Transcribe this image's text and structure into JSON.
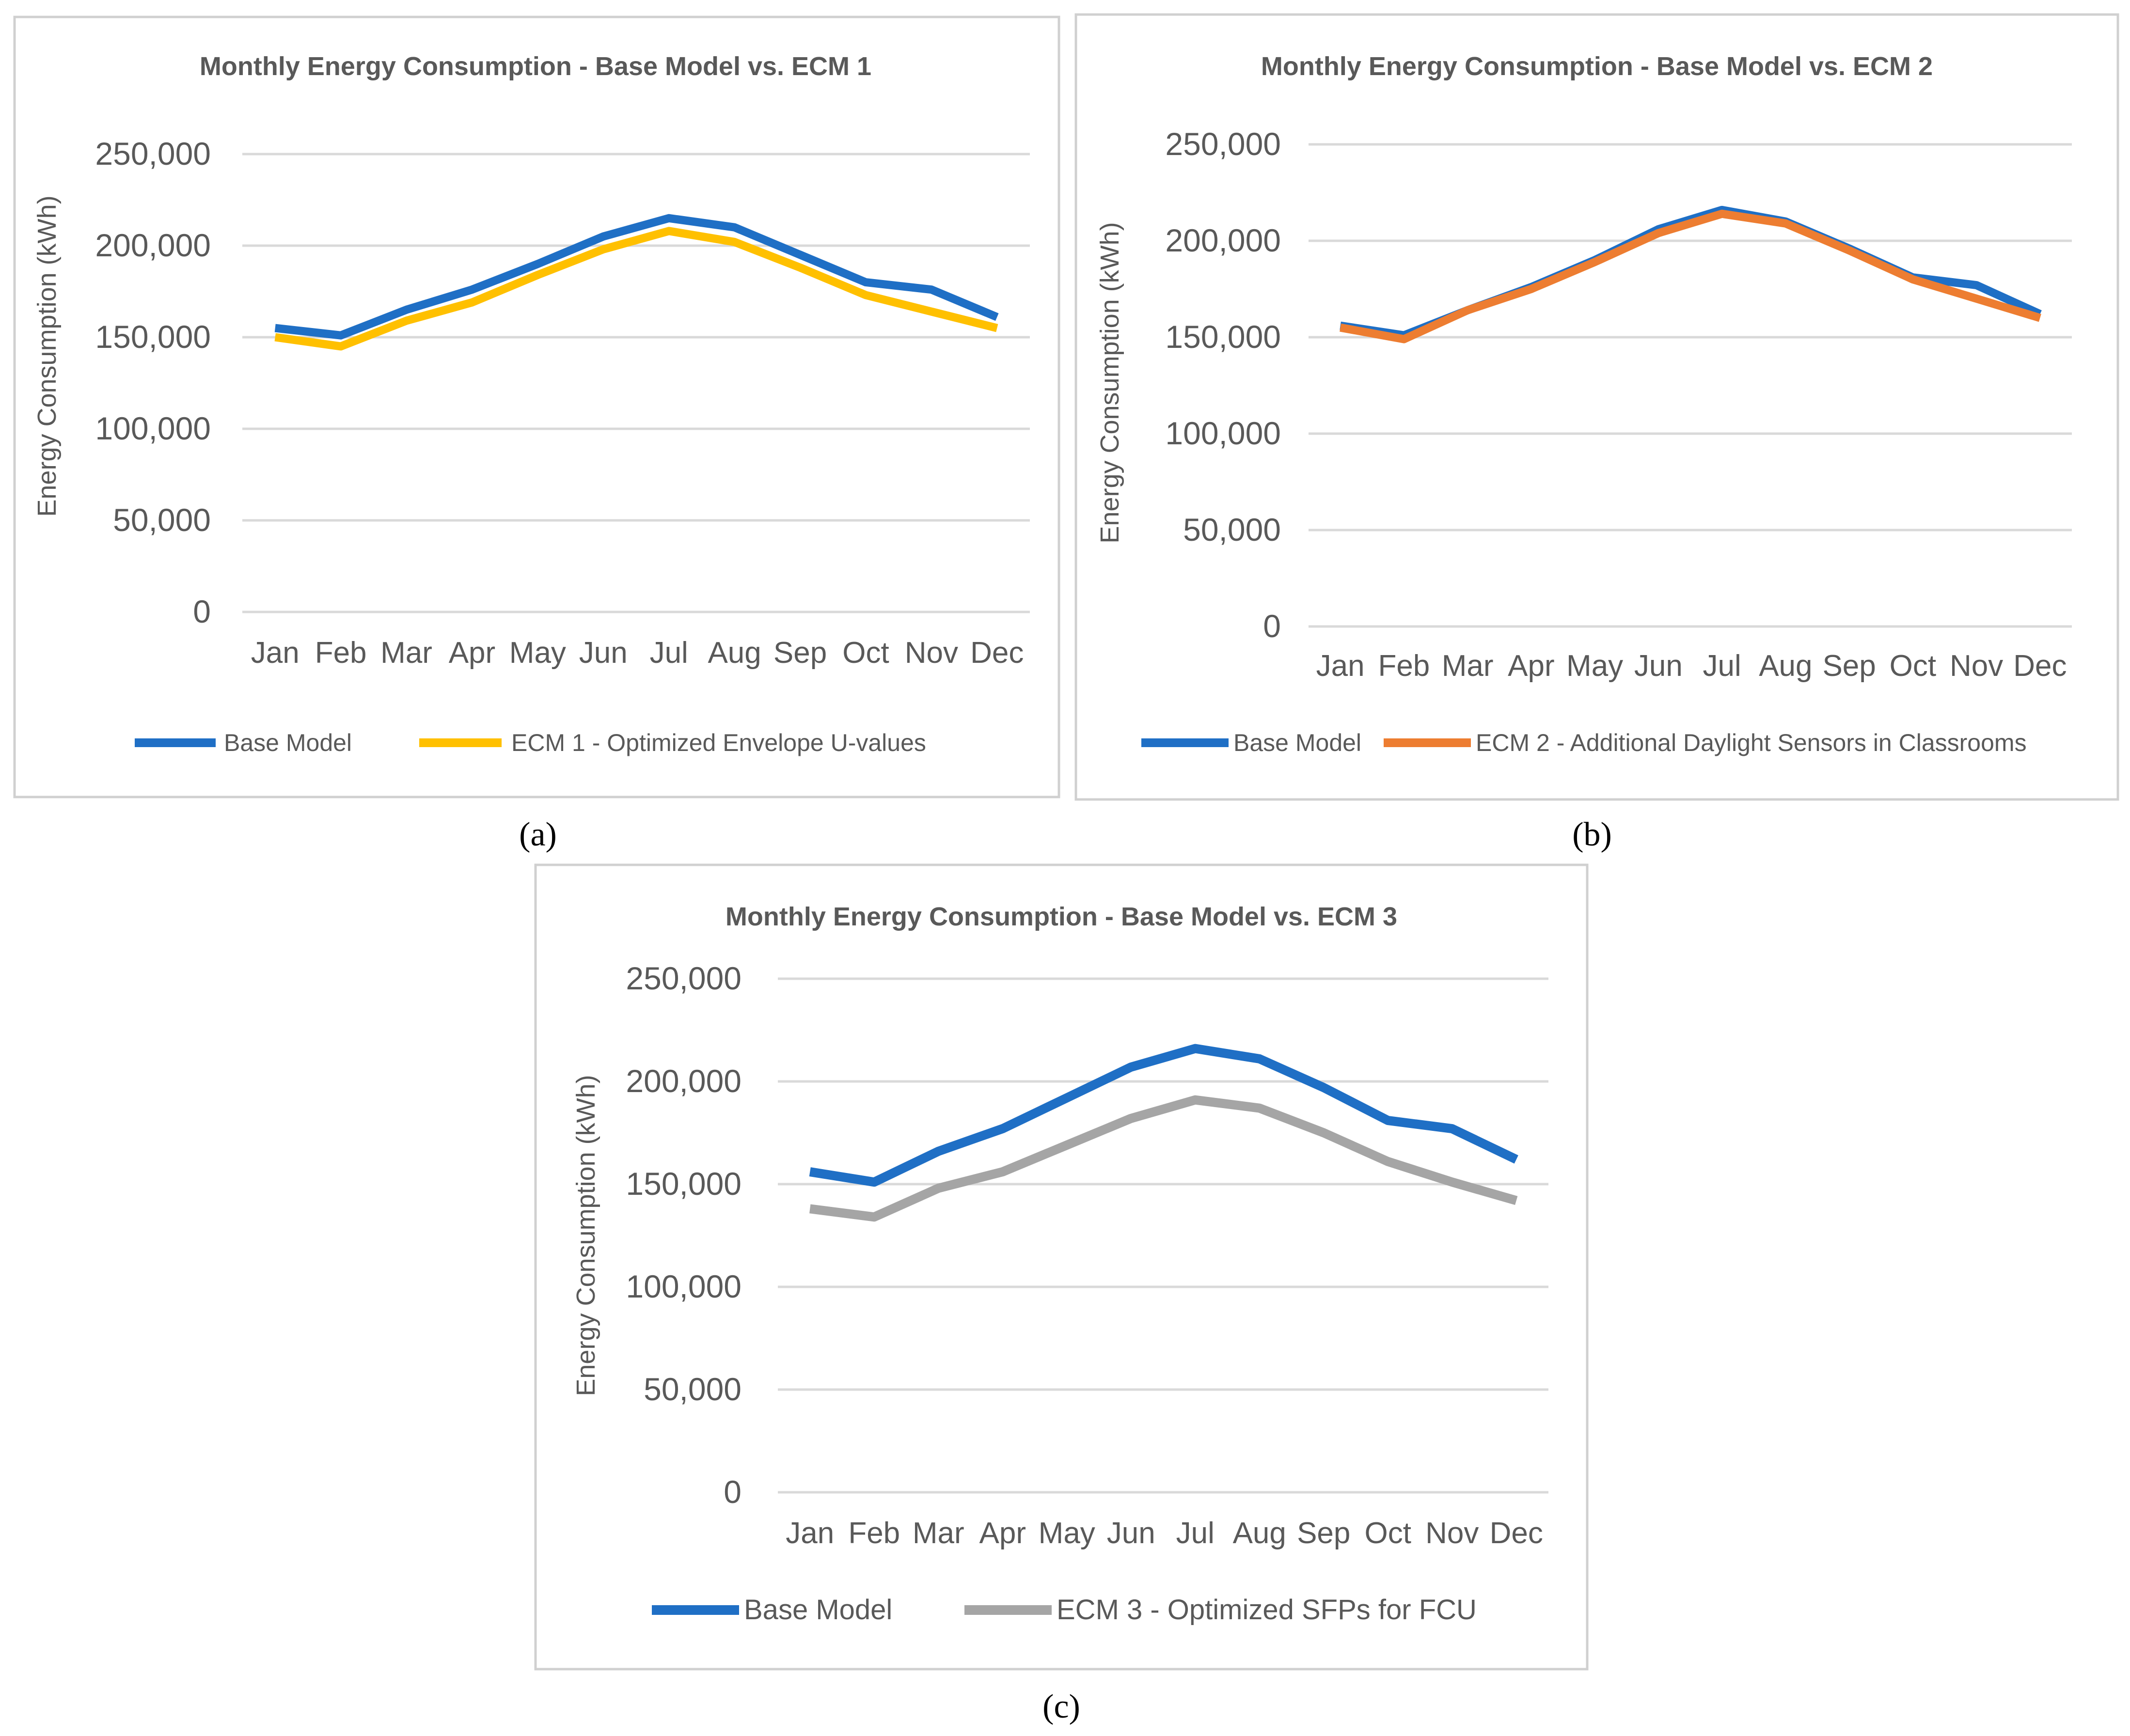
{
  "months": [
    "Jan",
    "Feb",
    "Mar",
    "Apr",
    "May",
    "Jun",
    "Jul",
    "Aug",
    "Sep",
    "Oct",
    "Nov",
    "Dec"
  ],
  "y_ticks": [
    "0",
    "50,000",
    "100,000",
    "150,000",
    "200,000",
    "250,000"
  ],
  "colors": {
    "base": "#1F6FC5",
    "ecm1": "#FFC000",
    "ecm2": "#ED7D31",
    "ecm3": "#A5A5A5",
    "grid": "#D9D9D9",
    "border": "#D0D0D0"
  },
  "chart_data": [
    {
      "type": "line",
      "panel": "(a)",
      "title": "Monthly Energy Consumption - Base Model vs. ECM 1",
      "ylabel": "Energy Consumption (kWh)",
      "xlabel": "",
      "ylim": [
        0,
        250000
      ],
      "categories": [
        "Jan",
        "Feb",
        "Mar",
        "Apr",
        "May",
        "Jun",
        "Jul",
        "Aug",
        "Sep",
        "Oct",
        "Nov",
        "Dec"
      ],
      "series": [
        {
          "name": "Base Model",
          "color": "#1F6FC5",
          "values": [
            155000,
            151000,
            165000,
            176000,
            190000,
            205000,
            215000,
            210000,
            195000,
            180000,
            176000,
            161000
          ]
        },
        {
          "name": "ECM 1 - Optimized Envelope U-values",
          "color": "#FFC000",
          "values": [
            150000,
            145000,
            159000,
            169000,
            184000,
            198000,
            208000,
            202000,
            188000,
            173000,
            164000,
            155000
          ]
        }
      ],
      "legend": "bottom"
    },
    {
      "type": "line",
      "panel": "(b)",
      "title": "Monthly Energy Consumption - Base Model vs. ECM 2",
      "ylabel": "Energy Consumption (kWh)",
      "xlabel": "",
      "ylim": [
        0,
        250000
      ],
      "categories": [
        "Jan",
        "Feb",
        "Mar",
        "Apr",
        "May",
        "Jun",
        "Jul",
        "Aug",
        "Sep",
        "Oct",
        "Nov",
        "Dec"
      ],
      "series": [
        {
          "name": "Base Model",
          "color": "#1F6FC5",
          "values": [
            156000,
            151000,
            164000,
            176000,
            190000,
            206000,
            216000,
            210000,
            196000,
            181000,
            177000,
            162000
          ]
        },
        {
          "name": "ECM 2 - Additional Daylight Sensors in Classrooms",
          "color": "#ED7D31",
          "values": [
            155000,
            149000,
            164000,
            175000,
            189000,
            204000,
            214000,
            209000,
            195000,
            180000,
            170000,
            160000
          ]
        }
      ],
      "legend": "bottom"
    },
    {
      "type": "line",
      "panel": "(c)",
      "title": "Monthly Energy Consumption - Base Model vs. ECM 3",
      "ylabel": "Energy Consumption (kWh)",
      "xlabel": "",
      "ylim": [
        0,
        250000
      ],
      "categories": [
        "Jan",
        "Feb",
        "Mar",
        "Apr",
        "May",
        "Jun",
        "Jul",
        "Aug",
        "Sep",
        "Oct",
        "Nov",
        "Dec"
      ],
      "series": [
        {
          "name": "Base Model",
          "color": "#1F6FC5",
          "values": [
            156000,
            151000,
            166000,
            177000,
            192000,
            207000,
            216000,
            211000,
            197000,
            181000,
            177000,
            162000
          ]
        },
        {
          "name": "ECM 3 - Optimized SFPs for FCU",
          "color": "#A5A5A5",
          "values": [
            138000,
            134000,
            148000,
            156000,
            169000,
            182000,
            191000,
            187000,
            175000,
            161000,
            151000,
            142000
          ]
        }
      ],
      "legend": "bottom"
    }
  ]
}
